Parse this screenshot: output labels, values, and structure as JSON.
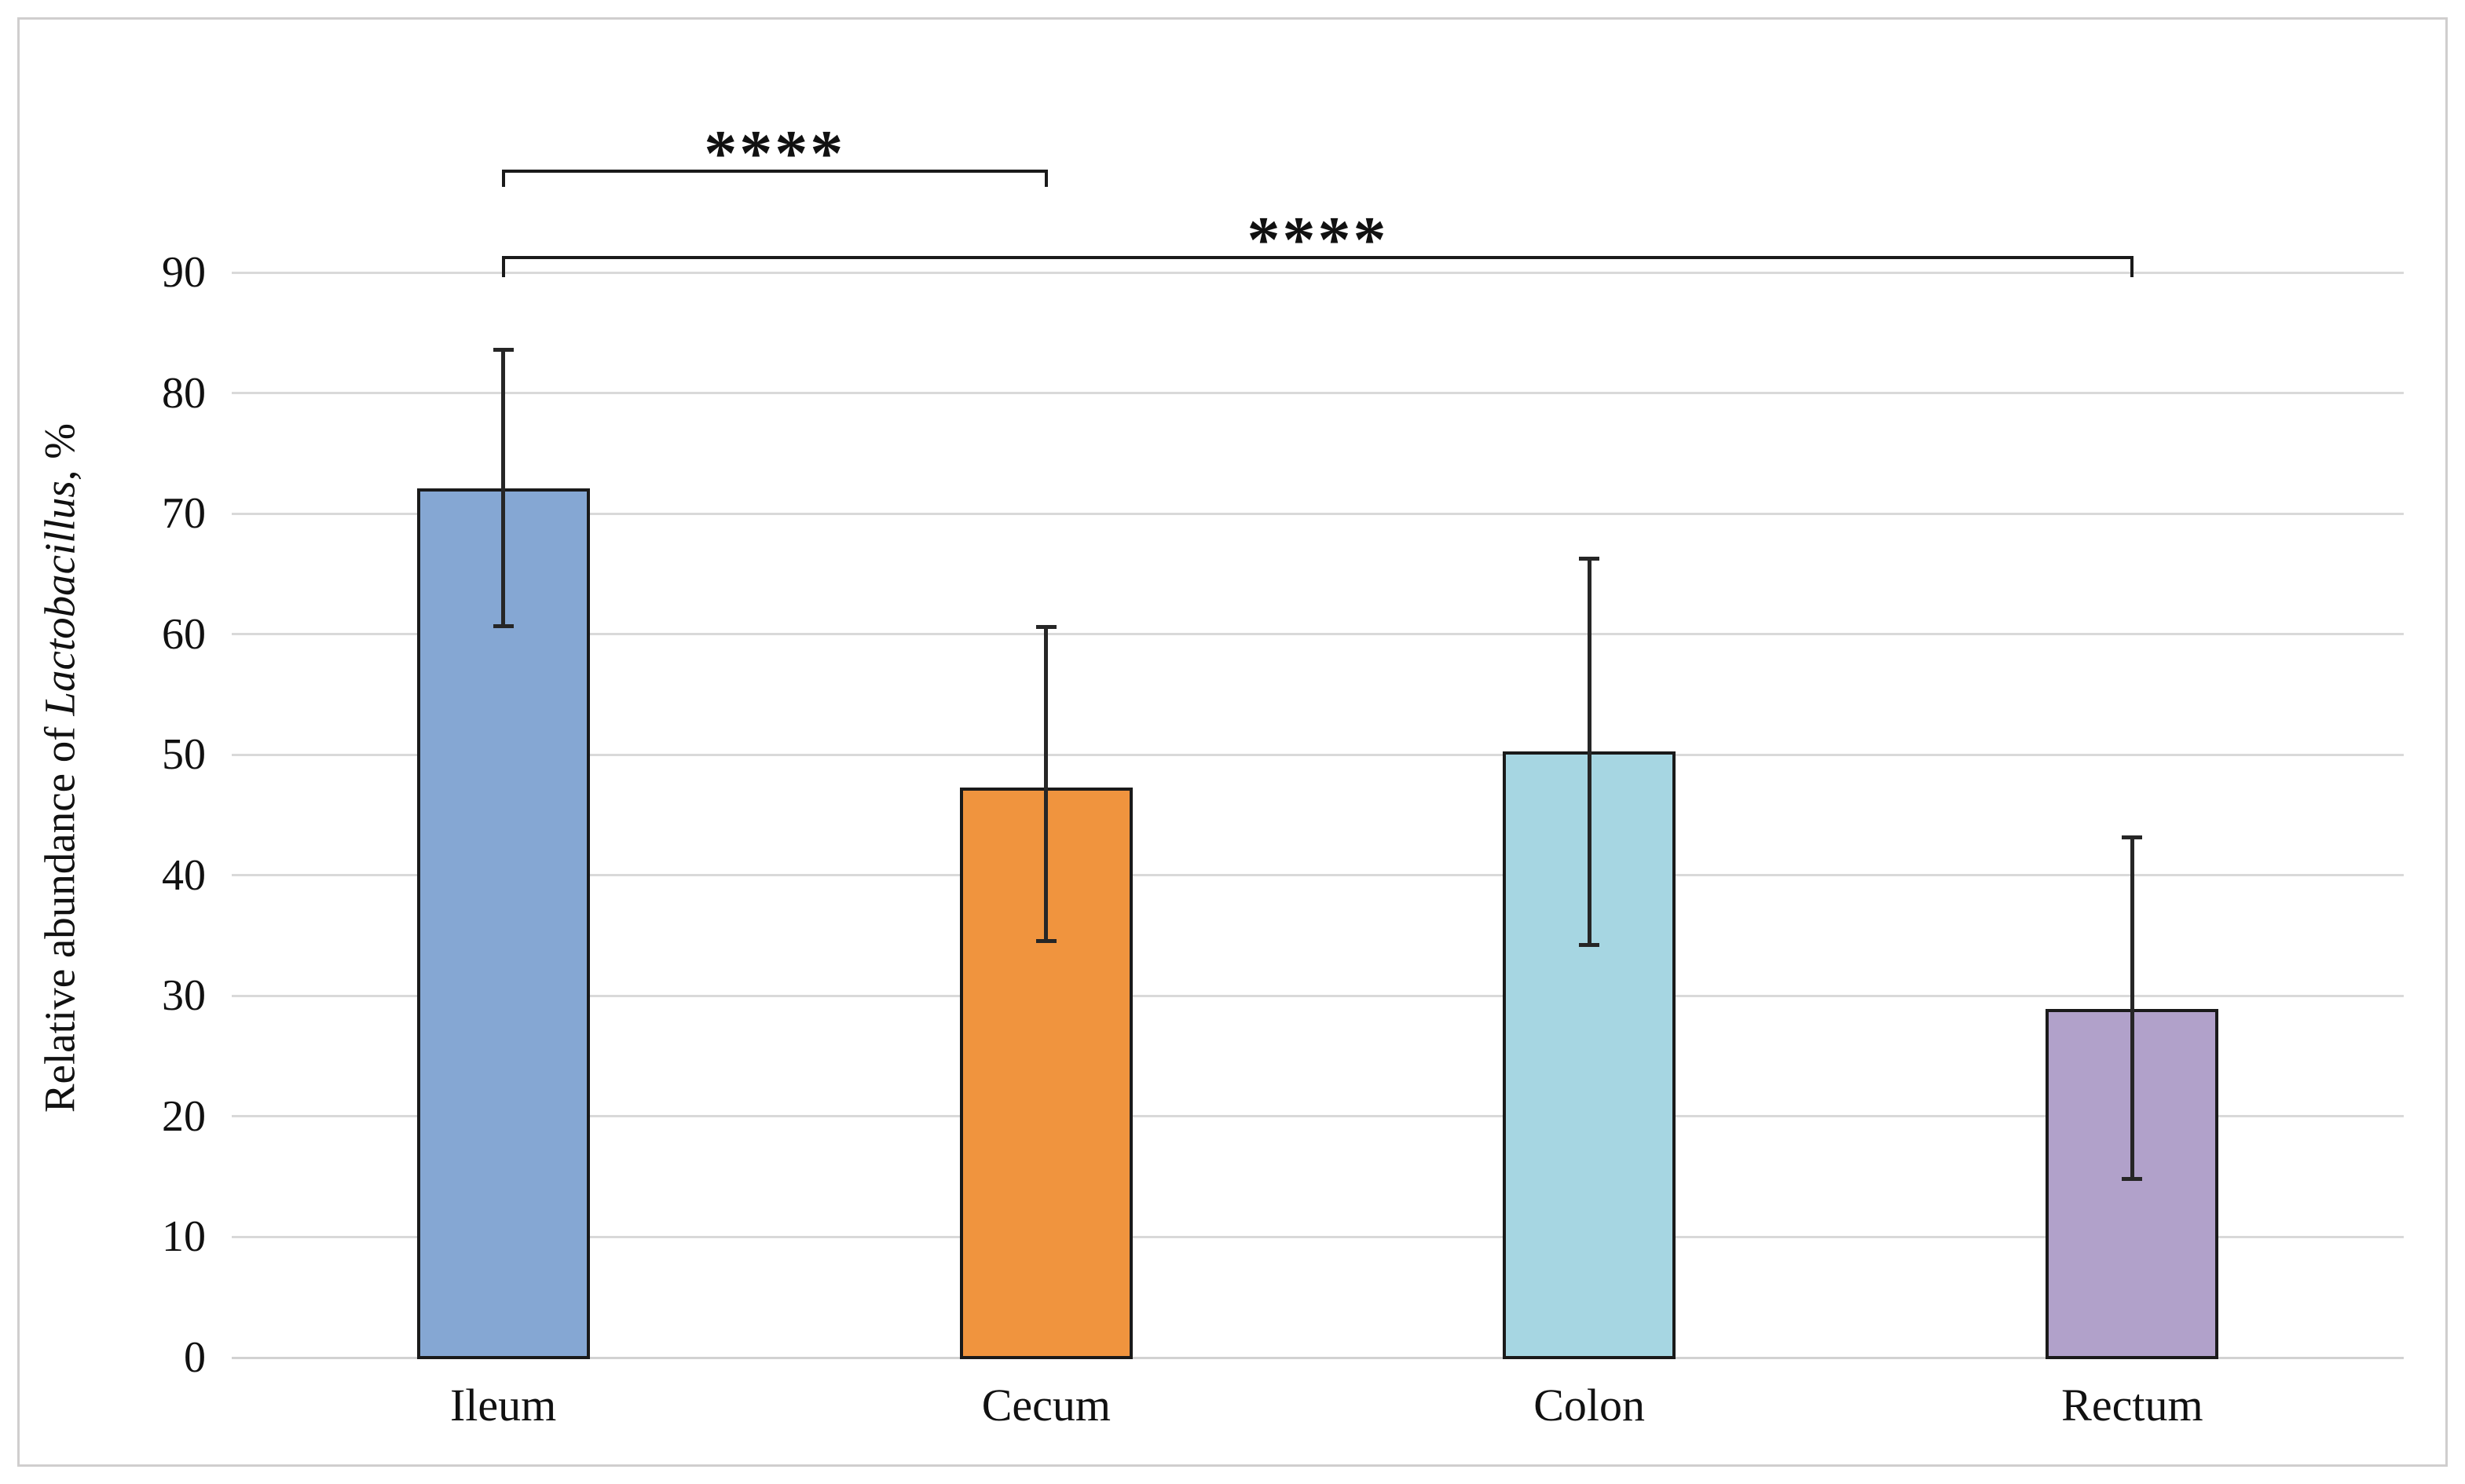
{
  "chart_data": {
    "type": "bar",
    "title": "",
    "categories": [
      "Ileum",
      "Cecum",
      "Colon",
      "Rectum"
    ],
    "values": [
      72.1,
      47.3,
      50.3,
      28.9
    ],
    "error_bars": {
      "upper": [
        83.6,
        60.6,
        66.3,
        43.2
      ],
      "lower": [
        60.6,
        34.5,
        34.2,
        14.8
      ]
    },
    "bar_colors": [
      "#85A7D3",
      "#F0943E",
      "#A6D6E2",
      "#B1A1CA"
    ],
    "ylabel_prefix": "Relative abundance of ",
    "ylabel_italic": "Lactobacillus",
    "ylabel_suffix": ", %",
    "xlabel": "",
    "ylim": [
      0,
      90
    ],
    "yticks": [
      0,
      10,
      20,
      30,
      40,
      50,
      60,
      70,
      80,
      90
    ],
    "grid": "horizontal",
    "legend": "none",
    "significance_brackets": [
      {
        "from": "Ileum",
        "to": "Cecum",
        "label": "****",
        "y_value": 98.5,
        "drop": 1.4
      },
      {
        "from": "Ileum",
        "to": "Rectum",
        "label": "****",
        "y_value": 91.4,
        "drop": 1.8
      }
    ],
    "colors": {
      "gridline": "#D9D9D9",
      "baseline": "#D2D2D2",
      "bar_outline": "#1A1A1A",
      "error_bar": "#262626",
      "figure_border": "#D0CECE",
      "text": "#111111"
    }
  }
}
